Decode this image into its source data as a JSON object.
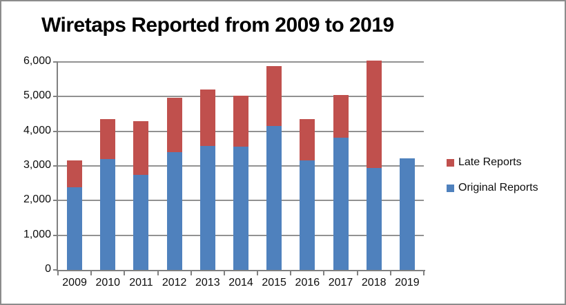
{
  "title": "Wiretaps Reported from 2009 to 2019",
  "colors": {
    "original_series": "#4F81BD",
    "late_series": "#C0504D",
    "gridline": "#919191",
    "axis": "#808080",
    "border": "#8C8C8C",
    "text": "#0D0D0D"
  },
  "legend": {
    "items": [
      {
        "label": "Late Reports",
        "series": "Late Reports"
      },
      {
        "label": "Original Reports",
        "series": "Original Reports"
      }
    ]
  },
  "chart_data": {
    "type": "bar",
    "stacked": true,
    "title": "Wiretaps Reported from 2009 to 2019",
    "categories": [
      "2009",
      "2010",
      "2011",
      "2012",
      "2013",
      "2014",
      "2015",
      "2016",
      "2017",
      "2018",
      "2019"
    ],
    "series": [
      {
        "name": "Original Reports",
        "color": "#4F81BD",
        "values": [
          2376,
          3194,
          2732,
          3395,
          3576,
          3554,
          4148,
          3168,
          3813,
          2937,
          3225
        ]
      },
      {
        "name": "Late Reports",
        "color": "#C0504D",
        "values": [
          790,
          1150,
          1555,
          1575,
          1630,
          1480,
          1740,
          1190,
          1225,
          3100,
          0
        ]
      }
    ],
    "xlabel": "",
    "ylabel": "",
    "ylim": [
      0,
      6000
    ],
    "yticks": [
      0,
      1000,
      2000,
      3000,
      4000,
      5000,
      6000
    ],
    "ytick_labels": [
      "0",
      "1,000",
      "2,000",
      "3,000",
      "4,000",
      "5,000",
      "6,000"
    ],
    "grid": true,
    "legend_position": "right"
  }
}
